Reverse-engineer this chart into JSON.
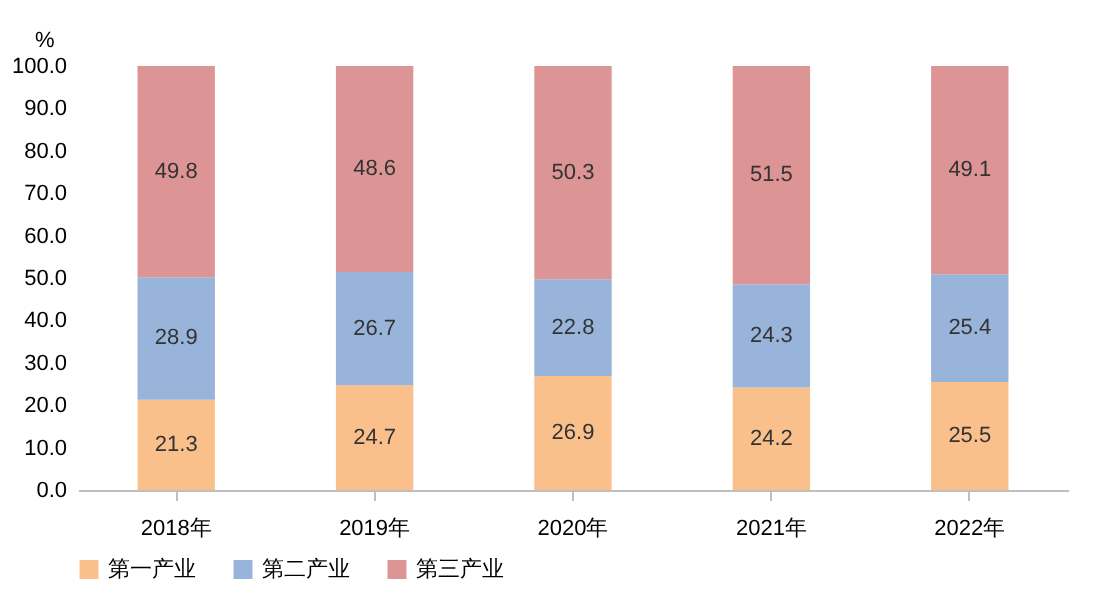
{
  "chart_data": {
    "type": "bar",
    "stacked": true,
    "ylabel": "%",
    "categories": [
      "2018年",
      "2019年",
      "2020年",
      "2021年",
      "2022年"
    ],
    "series": [
      {
        "name": "第一产业",
        "color": "#f9c08c",
        "values": [
          21.3,
          24.7,
          26.9,
          24.2,
          25.5
        ]
      },
      {
        "name": "第二产业",
        "color": "#98b4da",
        "values": [
          28.9,
          26.7,
          22.8,
          24.3,
          25.4
        ]
      },
      {
        "name": "第三产业",
        "color": "#dc9494",
        "values": [
          49.8,
          48.6,
          50.3,
          51.5,
          49.1
        ]
      }
    ],
    "ylim": [
      0,
      100
    ],
    "yticks": [
      {
        "value": 0,
        "label": "0.0"
      },
      {
        "value": 10,
        "label": "10.0"
      },
      {
        "value": 20,
        "label": "20.0"
      },
      {
        "value": 30,
        "label": "30.0"
      },
      {
        "value": 40,
        "label": "40.0"
      },
      {
        "value": 50,
        "label": "50.0"
      },
      {
        "value": 60,
        "label": "60.0"
      },
      {
        "value": 70,
        "label": "70.0"
      },
      {
        "value": 80,
        "label": "80.0"
      },
      {
        "value": 90,
        "label": "90.0"
      },
      {
        "value": 100,
        "label": "100.0"
      }
    ],
    "data_labels": true,
    "grid": false,
    "legend": "bottom"
  }
}
